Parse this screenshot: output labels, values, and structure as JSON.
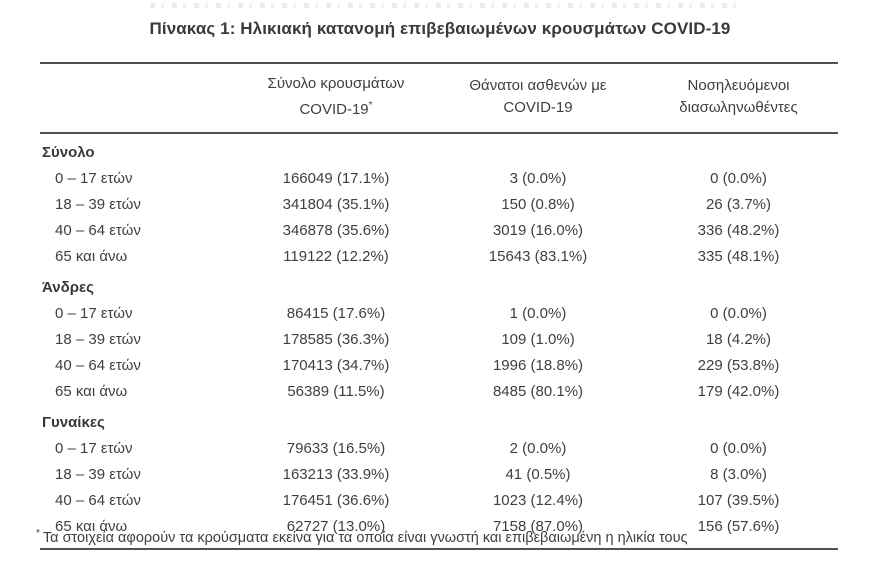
{
  "page": {
    "title": "Πίνακας 1: Ηλικιακή κατανομή επιβεβαιωμένων κρουσμάτων COVID-19",
    "footnote_marker": "*",
    "footnote_text": "Τα στοιχεία αφορούν τα κρούσματα εκείνα για τα οποία είναι γνωστή και επιβεβαιωμένη η ηλικία τους"
  },
  "colors": {
    "text": "#3d3d3d",
    "rule": "#515151",
    "background": "#ffffff"
  },
  "table": {
    "columns": [
      {
        "line1": "Σύνολο κρουσμάτων",
        "line2": "COVID-19",
        "sup": "*"
      },
      {
        "line1": "Θάνατοι ασθενών με",
        "line2": "COVID-19",
        "sup": ""
      },
      {
        "line1": "Νοσηλευόμενοι",
        "line2": "διασωληνωθέντες",
        "sup": ""
      }
    ],
    "sections": [
      {
        "header": "Σύνολο",
        "rows": [
          {
            "label": "0 – 17 ετών",
            "cases": "166049 (17.1%)",
            "deaths": "3 (0.0%)",
            "intubated": "0 (0.0%)"
          },
          {
            "label": "18 – 39 ετών",
            "cases": "341804 (35.1%)",
            "deaths": "150 (0.8%)",
            "intubated": "26 (3.7%)"
          },
          {
            "label": "40 – 64 ετών",
            "cases": "346878 (35.6%)",
            "deaths": "3019 (16.0%)",
            "intubated": "336 (48.2%)"
          },
          {
            "label": "65 και άνω",
            "cases": "119122 (12.2%)",
            "deaths": "15643 (83.1%)",
            "intubated": "335 (48.1%)"
          }
        ]
      },
      {
        "header": "Άνδρες",
        "rows": [
          {
            "label": "0 – 17 ετών",
            "cases": "86415 (17.6%)",
            "deaths": "1 (0.0%)",
            "intubated": "0 (0.0%)"
          },
          {
            "label": "18 – 39 ετών",
            "cases": "178585 (36.3%)",
            "deaths": "109 (1.0%)",
            "intubated": "18 (4.2%)"
          },
          {
            "label": "40 – 64 ετών",
            "cases": "170413 (34.7%)",
            "deaths": "1996 (18.8%)",
            "intubated": "229 (53.8%)"
          },
          {
            "label": "65 και άνω",
            "cases": "56389 (11.5%)",
            "deaths": "8485 (80.1%)",
            "intubated": "179 (42.0%)"
          }
        ]
      },
      {
        "header": "Γυναίκες",
        "rows": [
          {
            "label": "0 – 17 ετών",
            "cases": "79633 (16.5%)",
            "deaths": "2 (0.0%)",
            "intubated": "0 (0.0%)"
          },
          {
            "label": "18 – 39 ετών",
            "cases": "163213 (33.9%)",
            "deaths": "41 (0.5%)",
            "intubated": "8 (3.0%)"
          },
          {
            "label": "40 – 64 ετών",
            "cases": "176451 (36.6%)",
            "deaths": "1023 (12.4%)",
            "intubated": "107 (39.5%)"
          },
          {
            "label": "65 και άνω",
            "cases": "62727 (13.0%)",
            "deaths": "7158 (87.0%)",
            "intubated": "156 (57.6%)"
          }
        ]
      }
    ]
  }
}
